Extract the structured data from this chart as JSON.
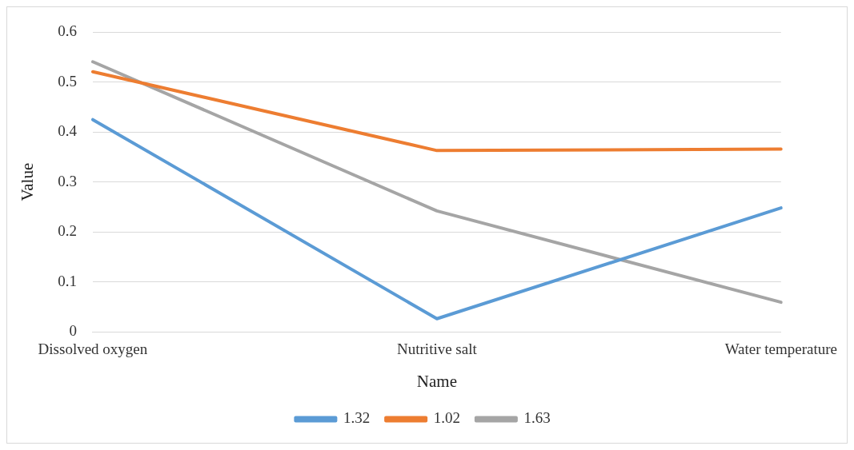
{
  "chart_data": {
    "type": "line",
    "xlabel": "Name",
    "ylabel": "Value",
    "categories": [
      "Dissolved oxygen",
      "Nutritive salt",
      "Water temperature"
    ],
    "series": [
      {
        "name": "1.32",
        "color": "#5b9bd5",
        "values": [
          0.425,
          0.026,
          0.248
        ]
      },
      {
        "name": "1.02",
        "color": "#ed7d31",
        "values": [
          0.521,
          0.363,
          0.366
        ]
      },
      {
        "name": "1.63",
        "color": "#a5a5a5",
        "values": [
          0.541,
          0.242,
          0.059
        ]
      }
    ],
    "ylim": [
      0,
      0.6
    ],
    "yticks": [
      0,
      0.1,
      0.2,
      0.3,
      0.4,
      0.5,
      0.6
    ],
    "grid": "y",
    "legend": "bottom",
    "marker": "none",
    "line_style": "solid"
  }
}
